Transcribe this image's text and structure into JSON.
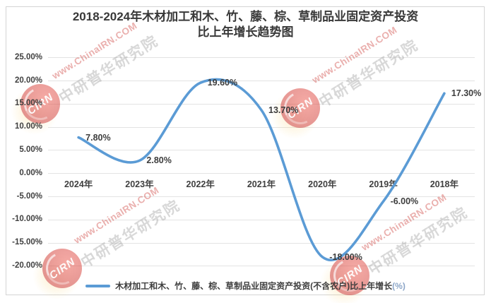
{
  "title": {
    "line1": "2018-2024年木材加工和木、竹、藤、棕、草制品业固定资产投资",
    "line2": "比上年增长趋势图"
  },
  "legend": {
    "label": "木材加工和木、竹、藤、棕、草制品业固定资产投资(不含农户)比上年增长",
    "suffix": "(%)"
  },
  "watermark": {
    "url_text": "www.ChinaIRN.COM",
    "org_text": "中研普华研究院",
    "logo_text": "CIRN"
  },
  "chart_data": {
    "type": "line",
    "title": "2018-2024年木材加工和木、竹、藤、棕、草制品业固定资产投资比上年增长趋势图",
    "categories": [
      "2024年",
      "2023年",
      "2022年",
      "2021年",
      "2020年",
      "2019年",
      "2018年"
    ],
    "series": [
      {
        "name": "木材加工和木、竹、藤、棕、草制品业固定资产投资(不含农户)比上年增长(%)",
        "values": [
          7.8,
          2.8,
          19.6,
          13.7,
          -18.0,
          -6.0,
          17.3
        ]
      }
    ],
    "data_labels": [
      "7.80%",
      "2.80%",
      "19.60%",
      "13.70%",
      "-18.00%",
      "-6.00%",
      "17.30%"
    ],
    "ylim": [
      -20,
      25
    ],
    "ytick_step": 5,
    "ytick_labels": [
      "25.00%",
      "20.00%",
      "15.00%",
      "10.00%",
      "5.00%",
      "0.00%",
      "-5.00%",
      "-10.00%",
      "-15.00%",
      "-20.00%"
    ],
    "grid": true,
    "smooth": true,
    "legend_position": "bottom",
    "line_color": "#5B9BD5"
  },
  "colors": {
    "line": "#5B9BD5",
    "gridline": "#e3e3e3",
    "text": "#3f3f3f",
    "legend_suffix": "#8ca6c8",
    "watermark_red": "#d65e5a",
    "watermark_gray": "#969696",
    "logo_red": "#c0392b",
    "logo_yellow": "#fad478"
  }
}
